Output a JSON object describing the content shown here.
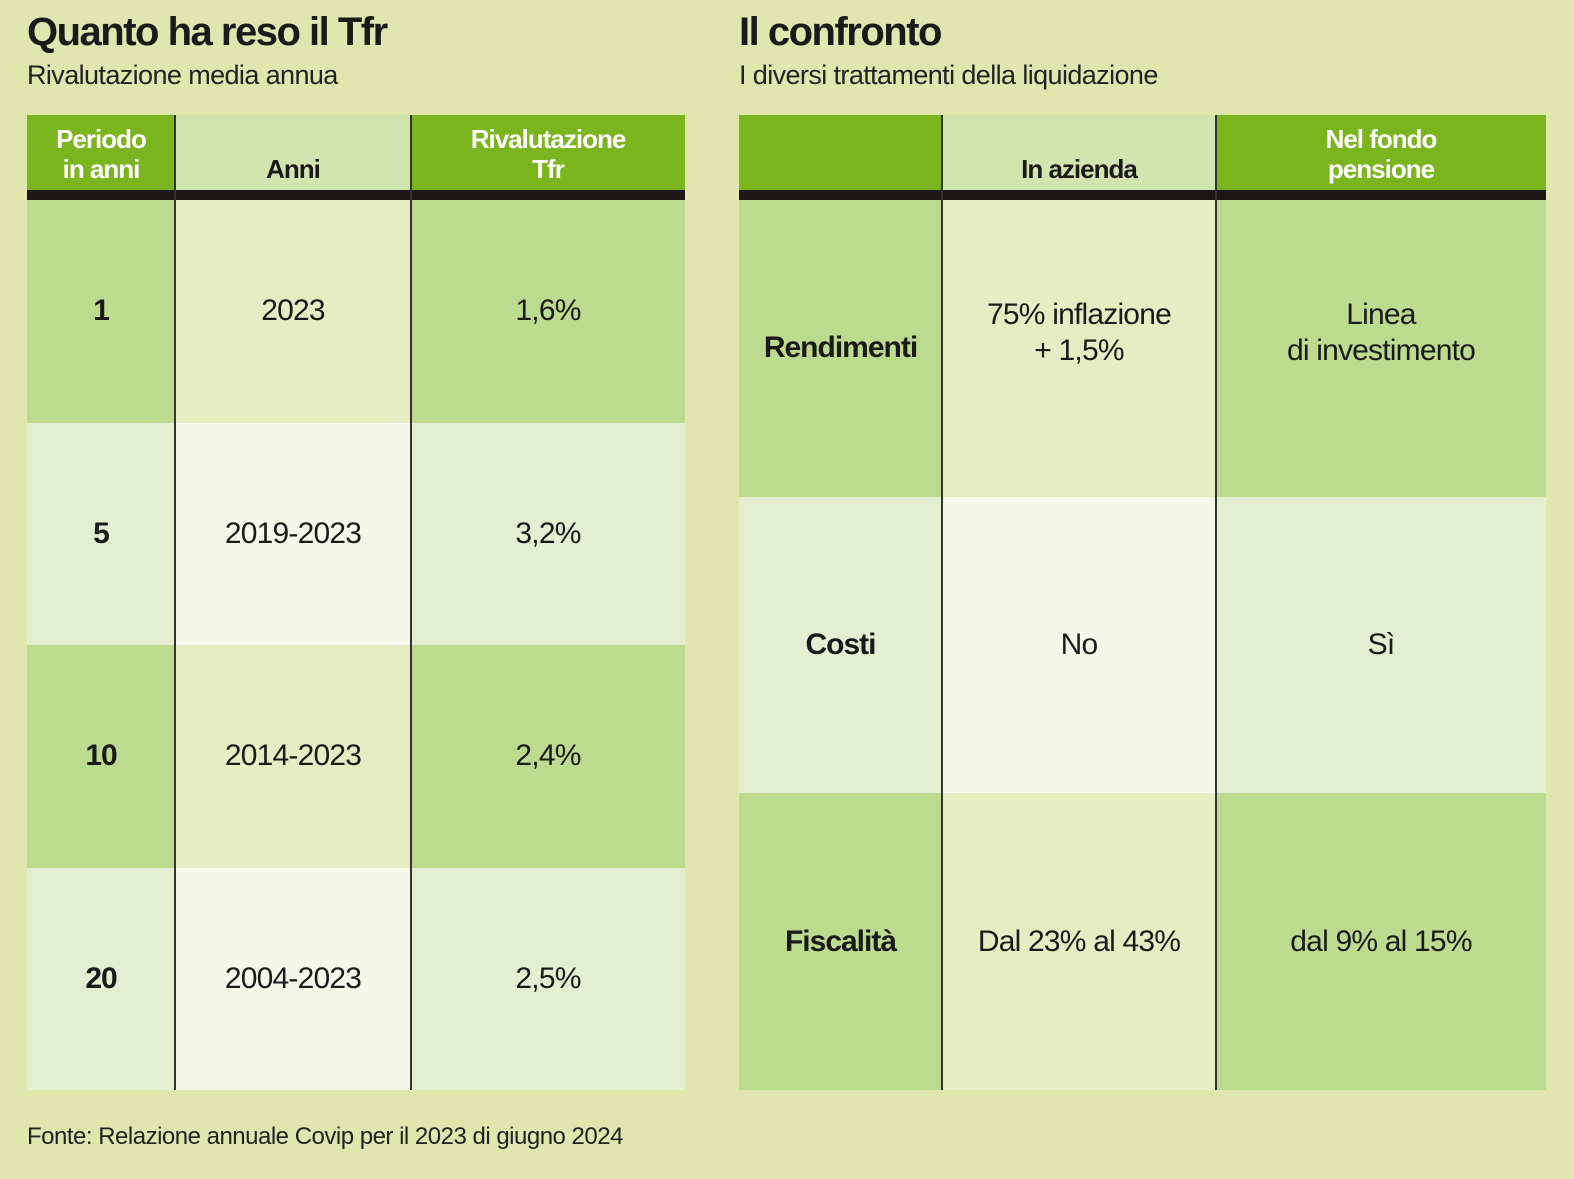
{
  "colors": {
    "background": "#dfe6ae",
    "header_green": "#7ab51d",
    "header_light": "#d2e5ae",
    "row_dark_side": "#bddb8f",
    "row_dark_mid": "#e6edc2",
    "row_light_side": "#e4efd2",
    "row_light_mid": "#f5f8e8",
    "rule": "#1a1714"
  },
  "left": {
    "title": "Quanto ha reso il Tfr",
    "subtitle": "Rivalutazione media annua"
  },
  "right": {
    "title": "Il confronto",
    "subtitle": "I diversi trattamenti della liquidazione"
  },
  "source": "Fonte: Relazione annuale Covip per il 2023 di giugno 2024",
  "chart_data": [
    {
      "type": "table",
      "title": "Quanto ha reso il Tfr",
      "subtitle": "Rivalutazione media annua",
      "columns": [
        "Periodo\nin anni",
        "Anni",
        "Rivalutazione\nTfr"
      ],
      "rows": [
        [
          "1",
          "2023",
          "1,6%"
        ],
        [
          "5",
          "2019-2023",
          "3,2%"
        ],
        [
          "10",
          "2014-2023",
          "2,4%"
        ],
        [
          "20",
          "2004-2023",
          "2,5%"
        ]
      ]
    },
    {
      "type": "table",
      "title": "Il confronto",
      "subtitle": "I diversi trattamenti della liquidazione",
      "columns": [
        "",
        "In azienda",
        "Nel fondo\npensione"
      ],
      "rows": [
        [
          "Rendimenti",
          "75% inflazione\n+ 1,5%",
          "Linea\ndi investimento"
        ],
        [
          "Costi",
          "No",
          "Sì"
        ],
        [
          "Fiscalità",
          "Dal 23% al 43%",
          "dal 9% al 15%"
        ]
      ]
    }
  ]
}
